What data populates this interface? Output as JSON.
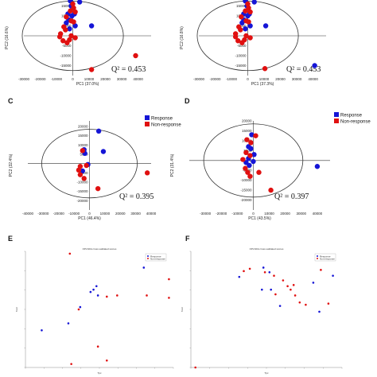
{
  "colors": {
    "response": "#1515d6",
    "non_response": "#e01010",
    "axis": "#333333",
    "ellipse": "#333333"
  },
  "chart_data": [
    {
      "id": "A",
      "type": "scatter",
      "panel_label": "",
      "xlabel": "PC1 (37.0%)",
      "ylabel": "PC2 (16.6%)",
      "xlim": [
        -30000,
        48000
      ],
      "ylim": [
        -20000,
        20000
      ],
      "xticks": [
        "-30000",
        "-20000",
        "-10000",
        "0",
        "10000",
        "20000",
        "30000",
        "40000"
      ],
      "yticks": [
        "15000",
        "10000",
        "5000",
        "0",
        "-5000",
        "-10000",
        "-15000"
      ],
      "annotation": "Q² = 0.453",
      "series": [
        {
          "name": "Response",
          "color": "#1515d6",
          "points": [
            [
              -1500,
              17500
            ],
            [
              -1000,
              15000
            ],
            [
              4200,
              17000
            ],
            [
              -3000,
              11000
            ],
            [
              1000,
              11000
            ],
            [
              -4000,
              6500
            ],
            [
              -2000,
              3500
            ],
            [
              1500,
              5000
            ],
            [
              11500,
              5000
            ],
            [
              -500,
              10000
            ],
            [
              -2500,
              8000
            ]
          ]
        },
        {
          "name": "Non-response",
          "color": "#e01010",
          "points": [
            [
              0,
              16000
            ],
            [
              500,
              14000
            ],
            [
              -1500,
              12500
            ],
            [
              1500,
              12000
            ],
            [
              -4000,
              9500
            ],
            [
              -1000,
              7500
            ],
            [
              500,
              7000
            ],
            [
              -5500,
              4500
            ],
            [
              -4500,
              3000
            ],
            [
              -8000,
              -500
            ],
            [
              -6000,
              -2500
            ],
            [
              -3500,
              -3500
            ],
            [
              -2000,
              -2000
            ],
            [
              1500,
              -1000
            ],
            [
              9500,
              20000
            ],
            [
              38500,
              -10000
            ],
            [
              11500,
              -17000
            ],
            [
              -1000,
              0
            ],
            [
              -7500,
              1000
            ]
          ]
        }
      ]
    },
    {
      "id": "B",
      "type": "scatter",
      "panel_label": "",
      "xlabel": "PC1 (37.3%)",
      "ylabel": "PC2 (16.8%)",
      "xlim": [
        -30000,
        48000
      ],
      "ylim": [
        -20000,
        20000
      ],
      "xticks": [
        "-30000",
        "-20000",
        "-10000",
        "0",
        "10000",
        "20000",
        "30000",
        "40000"
      ],
      "yticks": [
        "15000",
        "10000",
        "5000",
        "0",
        "-5000",
        "-10000",
        "-15000"
      ],
      "annotation": "Q² = 0.453",
      "series": [
        {
          "name": "Response",
          "color": "#1515d6",
          "points": [
            [
              -1500,
              17500
            ],
            [
              -500,
              15000
            ],
            [
              4000,
              17000
            ],
            [
              -2500,
              11000
            ],
            [
              1000,
              11000
            ],
            [
              -3500,
              6500
            ],
            [
              -1500,
              3500
            ],
            [
              1500,
              5000
            ],
            [
              11000,
              5000
            ],
            [
              0,
              10000
            ],
            [
              -2500,
              8000
            ],
            [
              41000,
              -15000
            ]
          ]
        },
        {
          "name": "Non-response",
          "color": "#e01010",
          "points": [
            [
              0,
              16000
            ],
            [
              500,
              14000
            ],
            [
              -1500,
              12500
            ],
            [
              1500,
              12000
            ],
            [
              -4000,
              9500
            ],
            [
              -1000,
              7500
            ],
            [
              500,
              7000
            ],
            [
              -5500,
              4500
            ],
            [
              -4500,
              3000
            ],
            [
              -7500,
              -500
            ],
            [
              -6000,
              -2500
            ],
            [
              -3500,
              -3500
            ],
            [
              -2000,
              -2000
            ],
            [
              1500,
              -1000
            ],
            [
              9000,
              20000
            ],
            [
              10500,
              -16500
            ],
            [
              -1000,
              0
            ],
            [
              -7500,
              1000
            ]
          ]
        }
      ]
    },
    {
      "id": "C",
      "type": "scatter",
      "panel_label": "C",
      "xlabel": "PC1 (46.4%)",
      "ylabel": "PC2 (32.4%)",
      "xlim": [
        -40000,
        40000
      ],
      "ylim": [
        -25000,
        23000
      ],
      "xticks": [
        "-40000",
        "-30000",
        "-20000",
        "-10000",
        "0",
        "10000",
        "20000",
        "30000",
        "40000"
      ],
      "yticks": [
        "20000",
        "15000",
        "10000",
        "5000",
        "0",
        "-5000",
        "-10000",
        "-15000",
        "-20000"
      ],
      "annotation": "Q² = 0.395",
      "legend": [
        "Response",
        "Non-response"
      ],
      "series": [
        {
          "name": "Response",
          "color": "#1515d6",
          "points": [
            [
              6000,
              17500
            ],
            [
              -3500,
              7500
            ],
            [
              -3000,
              5500
            ],
            [
              9000,
              6500
            ],
            [
              -1000,
              -500
            ],
            [
              -4500,
              -4000
            ]
          ]
        },
        {
          "name": "Non-response",
          "color": "#e01010",
          "points": [
            [
              -4500,
              7000
            ],
            [
              -2000,
              -1000
            ],
            [
              -6000,
              -1500
            ],
            [
              -7000,
              -3500
            ],
            [
              -6000,
              -6000
            ],
            [
              -3500,
              -8000
            ],
            [
              37500,
              -5000
            ],
            [
              5500,
              -13500
            ]
          ]
        }
      ]
    },
    {
      "id": "D",
      "type": "scatter",
      "panel_label": "D",
      "xlabel": "PC1 (43.5%)",
      "ylabel": "PC2 (31.4%)",
      "xlim": [
        -40000,
        48000
      ],
      "ylim": [
        -25000,
        20000
      ],
      "xticks": [
        "-30000",
        "-20000",
        "-10000",
        "0",
        "10000",
        "20000",
        "30000",
        "40000"
      ],
      "yticks": [
        "20000",
        "15000",
        "10000",
        "5000",
        "0",
        "-5000",
        "-10000",
        "-15000",
        "-20000"
      ],
      "annotation": "Q² = 0.397",
      "legend": [
        "Response",
        "Non-response"
      ],
      "series": [
        {
          "name": "Response",
          "color": "#1515d6",
          "points": [
            [
              -1000,
              13000
            ],
            [
              -3000,
              7000
            ],
            [
              -1500,
              6000
            ],
            [
              500,
              3000
            ],
            [
              -3000,
              1000
            ],
            [
              0,
              -500
            ],
            [
              -2500,
              -2500
            ],
            [
              -4500,
              -1000
            ],
            [
              40000,
              -3000
            ]
          ]
        },
        {
          "name": "Non-response",
          "color": "#e01010",
          "points": [
            [
              1500,
              12500
            ],
            [
              -4000,
              10500
            ],
            [
              -1500,
              9000
            ],
            [
              -4500,
              4000
            ],
            [
              -2000,
              2500
            ],
            [
              -5000,
              -4000
            ],
            [
              -3500,
              -6000
            ],
            [
              -2000,
              -8000
            ],
            [
              -6500,
              500
            ],
            [
              3500,
              -6000
            ],
            [
              11000,
              -15000
            ]
          ]
        }
      ]
    },
    {
      "id": "E",
      "type": "scatter",
      "panel_label": "E",
      "title": "OPLSDA cross-validated scores",
      "xlabel": "Tpc",
      "ylabel": "Tocc",
      "xlim": [
        0,
        1
      ],
      "ylim": [
        0,
        1
      ],
      "legend": [
        "Response",
        "Non-response"
      ],
      "series": [
        {
          "name": "Response",
          "color": "#1515d6",
          "points": [
            [
              0.11,
              0.32
            ],
            [
              0.29,
              0.38
            ],
            [
              0.37,
              0.52
            ],
            [
              0.44,
              0.65
            ],
            [
              0.46,
              0.67
            ],
            [
              0.48,
              0.7
            ],
            [
              0.49,
              0.62
            ],
            [
              0.8,
              0.86
            ]
          ]
        },
        {
          "name": "Non-response",
          "color": "#e01010",
          "points": [
            [
              0.3,
              0.98
            ],
            [
              0.55,
              0.61
            ],
            [
              0.62,
              0.62
            ],
            [
              0.82,
              0.62
            ],
            [
              0.97,
              0.6
            ],
            [
              0.97,
              0.76
            ],
            [
              0.49,
              0.18
            ],
            [
              0.55,
              0.06
            ],
            [
              0.31,
              0.03
            ],
            [
              0.36,
              0.5
            ]
          ]
        }
      ]
    },
    {
      "id": "F",
      "type": "scatter",
      "panel_label": "F",
      "title": "OPLSDA cross-validated scores",
      "xlabel": "Tpc",
      "ylabel": "Tocc",
      "xlim": [
        0,
        1
      ],
      "ylim": [
        0,
        1
      ],
      "legend": [
        "Response",
        "Non-response"
      ],
      "series": [
        {
          "name": "Response",
          "color": "#1515d6",
          "points": [
            [
              0.32,
              0.78
            ],
            [
              0.48,
              0.86
            ],
            [
              0.52,
              0.82
            ],
            [
              0.47,
              0.67
            ],
            [
              0.53,
              0.67
            ],
            [
              0.59,
              0.53
            ],
            [
              0.81,
              0.73
            ],
            [
              0.94,
              0.79
            ],
            [
              0.85,
              0.48
            ]
          ]
        },
        {
          "name": "Non-response",
          "color": "#e01010",
          "points": [
            [
              0.35,
              0.83
            ],
            [
              0.39,
              0.85
            ],
            [
              0.49,
              0.82
            ],
            [
              0.55,
              0.79
            ],
            [
              0.56,
              0.63
            ],
            [
              0.61,
              0.75
            ],
            [
              0.64,
              0.7
            ],
            [
              0.68,
              0.71
            ],
            [
              0.69,
              0.62
            ],
            [
              0.72,
              0.56
            ],
            [
              0.76,
              0.54
            ],
            [
              0.86,
              0.84
            ],
            [
              0.89,
              0.93
            ],
            [
              0.91,
              0.55
            ],
            [
              0.66,
              0.67
            ],
            [
              0.03,
              0.0
            ]
          ]
        }
      ]
    }
  ]
}
